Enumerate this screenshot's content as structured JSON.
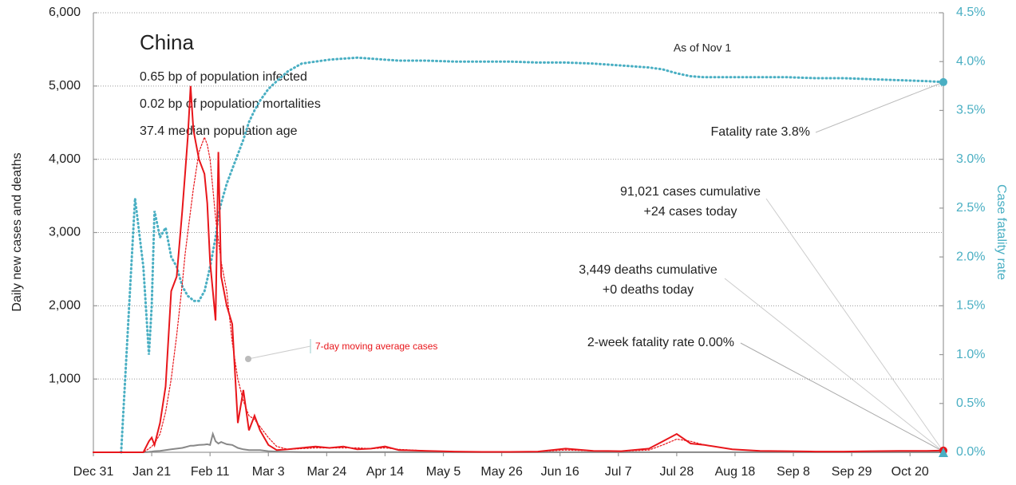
{
  "chart_data": {
    "type": "line",
    "title": "China",
    "subtitle": [
      "0.65 bp of population infected",
      "0.02 bp of population mortalities",
      "37.4 median population age"
    ],
    "ylabel": "Daily new cases and deaths",
    "y2label": "Case fatality rate",
    "annotations": [
      "As of Nov 1",
      "Fatality rate 3.8%",
      "91,021 cases cumulative",
      "+24 cases today",
      "3,449 deaths cumulative",
      "+0 deaths today",
      "2-week fatality rate 0.00%"
    ],
    "x": [
      0,
      5,
      10,
      15,
      18,
      20,
      21,
      22,
      24,
      26,
      28,
      30,
      32,
      33,
      34,
      35,
      36,
      38,
      40,
      41,
      42,
      43,
      44,
      45,
      46,
      48,
      50,
      52,
      54,
      56,
      58,
      60,
      63,
      66,
      70,
      75,
      80,
      85,
      90,
      95,
      100,
      105,
      110,
      120,
      130,
      140,
      150,
      160,
      170,
      180,
      190,
      200,
      205,
      210,
      215,
      220,
      230,
      240,
      250,
      260,
      270,
      280,
      290,
      300,
      306
    ],
    "xlim": [
      0,
      306
    ],
    "xticks": [
      {
        "value": 0,
        "label": "Dec 31"
      },
      {
        "value": 21,
        "label": "Jan 21"
      },
      {
        "value": 42,
        "label": "Feb 11"
      },
      {
        "value": 63,
        "label": "Mar 3"
      },
      {
        "value": 84,
        "label": "Mar 24"
      },
      {
        "value": 105,
        "label": "Apr 14"
      },
      {
        "value": 126,
        "label": "May 5"
      },
      {
        "value": 147,
        "label": "May 26"
      },
      {
        "value": 168,
        "label": "Jun 16"
      },
      {
        "value": 189,
        "label": "Jul 7"
      },
      {
        "value": 210,
        "label": "Jul 28"
      },
      {
        "value": 231,
        "label": "Aug 18"
      },
      {
        "value": 252,
        "label": "Sep 8"
      },
      {
        "value": 273,
        "label": "Sep 29"
      },
      {
        "value": 294,
        "label": "Oct 20"
      }
    ],
    "ylim": [
      0,
      6000
    ],
    "yticks": [
      {
        "value": 1000,
        "label": "1,000"
      },
      {
        "value": 2000,
        "label": "2,000"
      },
      {
        "value": 3000,
        "label": "3,000"
      },
      {
        "value": 4000,
        "label": "4,000"
      },
      {
        "value": 5000,
        "label": "5,000"
      },
      {
        "value": 6000,
        "label": "6,000"
      }
    ],
    "y2lim": [
      0,
      4.5
    ],
    "y2ticks": [
      {
        "value": 0,
        "label": "0.0%"
      },
      {
        "value": 0.5,
        "label": "0.5%"
      },
      {
        "value": 1,
        "label": "1.0%"
      },
      {
        "value": 1.5,
        "label": "1.5%"
      },
      {
        "value": 2,
        "label": "2.0%"
      },
      {
        "value": 2.5,
        "label": "2.5%"
      },
      {
        "value": 3,
        "label": "3.0%"
      },
      {
        "value": 3.5,
        "label": "3.5%"
      },
      {
        "value": 4,
        "label": "4.0%"
      },
      {
        "value": 4.5,
        "label": "4.5%"
      }
    ],
    "grid": true,
    "series": [
      {
        "color": "#e8161b",
        "dash": false,
        "values": [
          0,
          0,
          0,
          0,
          0,
          150,
          200,
          100,
          400,
          900,
          2200,
          2400,
          3300,
          3800,
          4300,
          5000,
          4400,
          4000,
          3800,
          3400,
          2600,
          2200,
          1800,
          4100,
          2400,
          2000,
          1750,
          400,
          850,
          300,
          500,
          300,
          100,
          30,
          40,
          60,
          80,
          60,
          80,
          40,
          50,
          80,
          30,
          20,
          10,
          5,
          5,
          10,
          50,
          20,
          15,
          50,
          150,
          250,
          120,
          100,
          40,
          20,
          15,
          10,
          10,
          15,
          20,
          20,
          24
        ]
      },
      {
        "name": "7-day moving average cases",
        "color": "#e8161b",
        "dash": true,
        "values": [
          0,
          0,
          0,
          0,
          0,
          50,
          80,
          120,
          250,
          550,
          1000,
          1600,
          2300,
          2700,
          3000,
          3300,
          3600,
          4100,
          4300,
          4200,
          4000,
          3600,
          3200,
          2900,
          2600,
          2200,
          1500,
          1000,
          700,
          500,
          450,
          350,
          200,
          80,
          40,
          50,
          60,
          60,
          60,
          60,
          50,
          60,
          40,
          20,
          10,
          5,
          5,
          10,
          30,
          20,
          15,
          30,
          100,
          180,
          150,
          100,
          40,
          20,
          15,
          10,
          10,
          15,
          18,
          20,
          20
        ]
      },
      {
        "color": "#888888",
        "dash": false,
        "values": [
          0,
          0,
          0,
          0,
          0,
          5,
          10,
          15,
          20,
          30,
          40,
          50,
          60,
          70,
          80,
          90,
          90,
          100,
          105,
          110,
          100,
          250,
          150,
          120,
          140,
          110,
          100,
          60,
          40,
          30,
          30,
          30,
          15,
          10,
          5,
          2,
          2,
          2,
          2,
          2,
          2,
          2,
          2,
          1,
          1,
          1,
          1,
          1,
          1,
          1,
          1,
          1,
          1,
          1,
          1,
          1,
          1,
          1,
          1,
          1,
          1,
          1,
          1,
          1,
          0
        ]
      },
      {
        "color": "#4aafc3",
        "dash": true,
        "axis": "y2",
        "values": [
          null,
          null,
          0,
          2.6,
          1.9,
          1.0,
          1.5,
          2.47,
          2.2,
          2.3,
          2.0,
          1.9,
          1.7,
          1.65,
          1.6,
          1.58,
          1.55,
          1.55,
          1.65,
          1.77,
          1.9,
          2.05,
          2.2,
          2.43,
          2.55,
          2.75,
          2.9,
          3.05,
          3.2,
          3.38,
          3.5,
          3.6,
          3.72,
          3.8,
          3.9,
          3.98,
          4.0,
          4.02,
          4.03,
          4.04,
          4.03,
          4.02,
          4.01,
          4.01,
          4.0,
          4.0,
          4.0,
          3.99,
          3.99,
          3.98,
          3.96,
          3.94,
          3.92,
          3.88,
          3.85,
          3.84,
          3.84,
          3.84,
          3.84,
          3.83,
          3.83,
          3.82,
          3.81,
          3.8,
          3.79
        ]
      }
    ]
  }
}
